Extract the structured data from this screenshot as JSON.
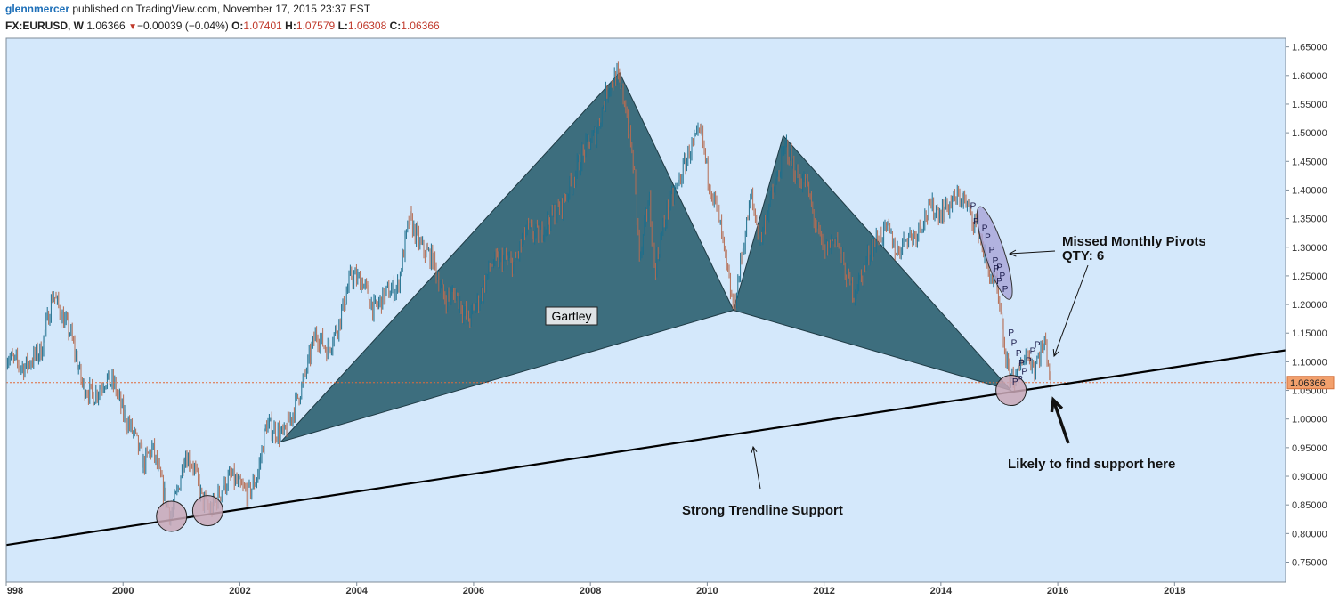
{
  "header": {
    "author": "glennmercer",
    "published_text": " published on TradingView.com, November 17, 2015 23:37 EST"
  },
  "ohlc": {
    "symbol": "FX:EURUSD, W",
    "last": "1.06366",
    "change": "−0.00039 (−0.04%)",
    "o_label": "O:",
    "o": "1.07401",
    "h_label": "H:",
    "h": "1.07579",
    "l_label": "L:",
    "l": "1.06308",
    "c_label": "C:",
    "c": "1.06366"
  },
  "colors": {
    "background": "#d4e8fb",
    "pattern_fill": "#3d6e7e",
    "circle_fill": "#c9a7b6",
    "ellipse_fill": "#a7a4d8",
    "price_line": "#e06a3a",
    "trendline": "#000000"
  },
  "chart_data": {
    "type": "line",
    "x_type": "year",
    "xlim": [
      1998,
      2019.9
    ],
    "ylim": [
      0.715,
      1.665
    ],
    "x_ticks": [
      "998",
      "2000",
      "2002",
      "2004",
      "2006",
      "2008",
      "2010",
      "2012",
      "2014",
      "2016",
      "2018"
    ],
    "y_ticks": [
      "0.75000",
      "0.80000",
      "0.85000",
      "0.90000",
      "0.95000",
      "1.00000",
      "1.05000",
      "1.10000",
      "1.15000",
      "1.20000",
      "1.25000",
      "1.30000",
      "1.35000",
      "1.40000",
      "1.45000",
      "1.50000",
      "1.55000",
      "1.60000",
      "1.65000"
    ],
    "current_price": 1.06366,
    "current_price_label": "1.06366",
    "series": [
      {
        "values_xy": [
          [
            1998.0,
            1.11
          ],
          [
            1998.3,
            1.09
          ],
          [
            1998.6,
            1.12
          ],
          [
            1998.8,
            1.22
          ],
          [
            1998.95,
            1.18
          ],
          [
            1999.1,
            1.15
          ],
          [
            1999.3,
            1.06
          ],
          [
            1999.5,
            1.04
          ],
          [
            1999.7,
            1.07
          ],
          [
            1999.85,
            1.06
          ],
          [
            2000.0,
            1.01
          ],
          [
            2000.2,
            0.97
          ],
          [
            2000.35,
            0.92
          ],
          [
            2000.5,
            0.95
          ],
          [
            2000.7,
            0.87
          ],
          [
            2000.82,
            0.83
          ],
          [
            2000.95,
            0.88
          ],
          [
            2001.05,
            0.94
          ],
          [
            2001.2,
            0.92
          ],
          [
            2001.35,
            0.86
          ],
          [
            2001.5,
            0.84
          ],
          [
            2001.7,
            0.88
          ],
          [
            2001.85,
            0.9
          ],
          [
            2002.0,
            0.88
          ],
          [
            2002.15,
            0.87
          ],
          [
            2002.3,
            0.9
          ],
          [
            2002.45,
            0.99
          ],
          [
            2002.6,
            0.98
          ],
          [
            2002.75,
            0.97
          ],
          [
            2002.9,
            1.01
          ],
          [
            2003.1,
            1.07
          ],
          [
            2003.3,
            1.15
          ],
          [
            2003.5,
            1.12
          ],
          [
            2003.7,
            1.17
          ],
          [
            2003.9,
            1.25
          ],
          [
            2004.1,
            1.24
          ],
          [
            2004.3,
            1.19
          ],
          [
            2004.5,
            1.22
          ],
          [
            2004.7,
            1.23
          ],
          [
            2004.9,
            1.35
          ],
          [
            2005.1,
            1.3
          ],
          [
            2005.3,
            1.28
          ],
          [
            2005.5,
            1.21
          ],
          [
            2005.7,
            1.22
          ],
          [
            2005.9,
            1.17
          ],
          [
            2006.1,
            1.21
          ],
          [
            2006.3,
            1.27
          ],
          [
            2006.5,
            1.28
          ],
          [
            2006.7,
            1.27
          ],
          [
            2006.9,
            1.33
          ],
          [
            2007.1,
            1.32
          ],
          [
            2007.3,
            1.35
          ],
          [
            2007.5,
            1.37
          ],
          [
            2007.7,
            1.42
          ],
          [
            2007.9,
            1.47
          ],
          [
            2008.1,
            1.5
          ],
          [
            2008.3,
            1.58
          ],
          [
            2008.45,
            1.6
          ],
          [
            2008.6,
            1.55
          ],
          [
            2008.75,
            1.43
          ],
          [
            2008.85,
            1.27
          ],
          [
            2009.0,
            1.39
          ],
          [
            2009.1,
            1.26
          ],
          [
            2009.3,
            1.36
          ],
          [
            2009.5,
            1.41
          ],
          [
            2009.7,
            1.47
          ],
          [
            2009.9,
            1.5
          ],
          [
            2010.0,
            1.43
          ],
          [
            2010.2,
            1.35
          ],
          [
            2010.35,
            1.25
          ],
          [
            2010.45,
            1.19
          ],
          [
            2010.6,
            1.29
          ],
          [
            2010.75,
            1.39
          ],
          [
            2010.9,
            1.31
          ],
          [
            2011.05,
            1.37
          ],
          [
            2011.2,
            1.42
          ],
          [
            2011.35,
            1.48
          ],
          [
            2011.5,
            1.43
          ],
          [
            2011.7,
            1.41
          ],
          [
            2011.85,
            1.34
          ],
          [
            2012.0,
            1.29
          ],
          [
            2012.2,
            1.32
          ],
          [
            2012.35,
            1.26
          ],
          [
            2012.5,
            1.22
          ],
          [
            2012.65,
            1.25
          ],
          [
            2012.8,
            1.3
          ],
          [
            2012.95,
            1.32
          ],
          [
            2013.1,
            1.33
          ],
          [
            2013.25,
            1.29
          ],
          [
            2013.4,
            1.32
          ],
          [
            2013.55,
            1.32
          ],
          [
            2013.7,
            1.35
          ],
          [
            2013.85,
            1.37
          ],
          [
            2014.0,
            1.36
          ],
          [
            2014.2,
            1.38
          ],
          [
            2014.35,
            1.39
          ],
          [
            2014.5,
            1.36
          ],
          [
            2014.65,
            1.33
          ],
          [
            2014.8,
            1.26
          ],
          [
            2014.95,
            1.23
          ],
          [
            2015.05,
            1.15
          ],
          [
            2015.15,
            1.08
          ],
          [
            2015.3,
            1.07
          ],
          [
            2015.45,
            1.12
          ],
          [
            2015.6,
            1.09
          ],
          [
            2015.7,
            1.12
          ],
          [
            2015.8,
            1.13
          ],
          [
            2015.88,
            1.06366
          ]
        ]
      }
    ],
    "gartley": {
      "label": "Gartley",
      "X": [
        2002.7,
        0.96
      ],
      "A": [
        2008.5,
        1.605
      ],
      "B": [
        2010.45,
        1.19
      ],
      "C": [
        2011.3,
        1.495
      ],
      "D": [
        2015.2,
        1.05
      ]
    },
    "trendline": {
      "start": [
        1998.0,
        0.78
      ],
      "end": [
        2019.9,
        1.12
      ]
    },
    "support_circles": [
      [
        2000.83,
        0.83
      ],
      [
        2001.45,
        0.84
      ],
      [
        2015.2,
        1.05
      ]
    ],
    "pivot_ellipse": {
      "center": [
        2014.92,
        1.29
      ],
      "rx_years": 0.3,
      "ry_price": 0.085
    },
    "pivot_markers": [
      "P",
      "P",
      "P",
      "P",
      "P",
      "P",
      "P",
      "P",
      "P",
      "P",
      "P",
      "P",
      "P",
      "P",
      "P",
      "P",
      "P",
      "P",
      "P",
      "P",
      "P"
    ],
    "annotations": {
      "missed_pivots_line1": "Missed Monthly Pivots",
      "missed_pivots_line2": "QTY: 6",
      "support_here": "Likely to find support here",
      "trendline_support": "Strong Trendline Support"
    }
  }
}
